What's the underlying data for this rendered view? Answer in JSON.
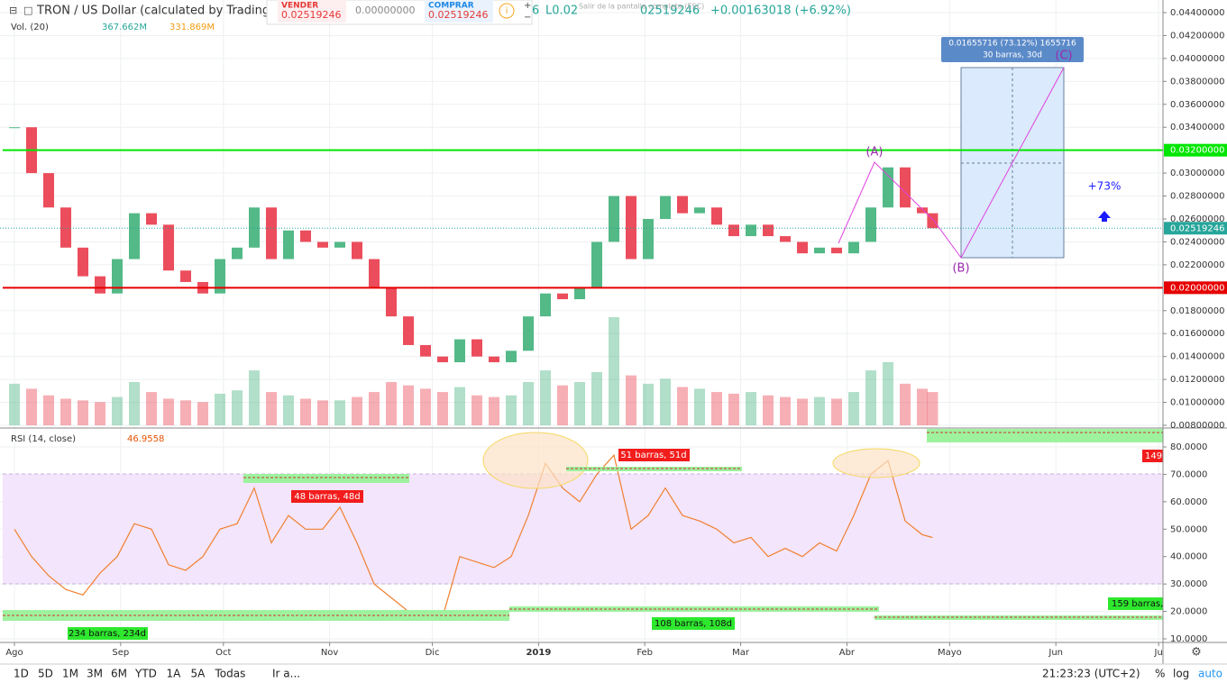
{
  "chart_data": {
    "type": "candlestick",
    "title": "TRON / US Dollar (calculated by TradingVie",
    "change": "+0.00163018 (+6.92%)",
    "partial_legend": [
      "6",
      "L0.02",
      "02519246"
    ],
    "fullscreen_hint": "Salir de la pantalla completa (ESC)",
    "trade": {
      "sell_label": "VENDER",
      "sell_price": "0.02519246",
      "spread": "0.00000000",
      "buy_label": "COMPRAR",
      "buy_price": "0.02519246"
    },
    "volume_label": "Vol. (20)",
    "volume_value": "367.662M",
    "volume_ma": "331.869M",
    "rsi_label": "RSI (14, close)",
    "rsi_value": "46.9558",
    "up_color": "#53b987",
    "down_color": "#eb4d5c",
    "x": [
      0,
      5,
      10,
      15,
      20,
      25,
      30,
      35,
      40,
      45,
      50,
      55,
      60,
      65,
      70,
      75,
      80,
      85,
      90,
      95,
      100,
      105,
      110,
      115,
      120,
      125,
      130,
      135,
      140,
      145,
      150,
      155,
      160,
      165,
      170,
      175,
      180,
      185,
      190,
      195,
      200,
      205,
      210,
      215,
      220,
      225,
      230,
      235,
      240,
      245,
      250,
      255,
      260,
      265,
      268
    ],
    "close": [
      0.034,
      0.03,
      0.027,
      0.0235,
      0.021,
      0.0195,
      0.0225,
      0.0265,
      0.0255,
      0.0215,
      0.0205,
      0.0195,
      0.0225,
      0.0235,
      0.027,
      0.0225,
      0.025,
      0.024,
      0.0235,
      0.024,
      0.0225,
      0.02,
      0.0175,
      0.015,
      0.014,
      0.0135,
      0.0155,
      0.014,
      0.0135,
      0.0145,
      0.0175,
      0.0195,
      0.019,
      0.02,
      0.024,
      0.028,
      0.0225,
      0.026,
      0.028,
      0.0265,
      0.027,
      0.0255,
      0.0245,
      0.0255,
      0.0245,
      0.024,
      0.023,
      0.0235,
      0.023,
      0.024,
      0.027,
      0.0305,
      0.027,
      0.0265,
      0.02519246
    ],
    "volume": [
      250,
      220,
      180,
      160,
      150,
      140,
      170,
      260,
      200,
      160,
      150,
      140,
      190,
      210,
      330,
      200,
      180,
      160,
      150,
      150,
      170,
      200,
      260,
      240,
      220,
      200,
      230,
      180,
      170,
      180,
      260,
      330,
      240,
      260,
      320,
      650,
      300,
      250,
      280,
      230,
      220,
      200,
      190,
      200,
      180,
      170,
      160,
      170,
      160,
      200,
      330,
      380,
      250,
      220,
      200
    ],
    "rsi": [
      50,
      40,
      33,
      28,
      26,
      34,
      40,
      52,
      50,
      37,
      35,
      40,
      50,
      52,
      65,
      45,
      55,
      50,
      50,
      58,
      45,
      30,
      25,
      20,
      17,
      18,
      40,
      38,
      36,
      40,
      55,
      74,
      65,
      60,
      70,
      77,
      50,
      55,
      65,
      55,
      53,
      50,
      45,
      47,
      40,
      43,
      40,
      45,
      42,
      55,
      70,
      75,
      53,
      48,
      46.9558
    ],
    "xticks": [
      {
        "value": 0,
        "label": "Ago"
      },
      {
        "value": 31,
        "label": "Sep"
      },
      {
        "value": 61,
        "label": "Oct"
      },
      {
        "value": 92,
        "label": "Nov"
      },
      {
        "value": 122,
        "label": "Dic"
      },
      {
        "value": 153,
        "label": "2019"
      },
      {
        "value": 184,
        "label": "Feb"
      },
      {
        "value": 212,
        "label": "Mar"
      },
      {
        "value": 243,
        "label": "Abr"
      },
      {
        "value": 273,
        "label": "Mayo"
      },
      {
        "value": 304,
        "label": "Jun"
      },
      {
        "value": 334,
        "label": "Ju"
      }
    ],
    "ylim": [
      0.008,
      0.044
    ],
    "yticks": [
      {
        "value": 0.044,
        "label": "0.04400000"
      },
      {
        "value": 0.042,
        "label": "0.04200000"
      },
      {
        "value": 0.04,
        "label": "0.04000000"
      },
      {
        "value": 0.038,
        "label": "0.03800000"
      },
      {
        "value": 0.036,
        "label": "0.03600000"
      },
      {
        "value": 0.034,
        "label": "0.03400000"
      },
      {
        "value": 0.03,
        "label": "0.03000000"
      },
      {
        "value": 0.028,
        "label": "0.02800000"
      },
      {
        "value": 0.026,
        "label": "0.02600000"
      },
      {
        "value": 0.024,
        "label": "0.02400000"
      },
      {
        "value": 0.022,
        "label": "0.02200000"
      },
      {
        "value": 0.018,
        "label": "0.01800000"
      },
      {
        "value": 0.016,
        "label": "0.01600000"
      },
      {
        "value": 0.014,
        "label": "0.01400000"
      },
      {
        "value": 0.012,
        "label": "0.01200000"
      },
      {
        "value": 0.01,
        "label": "0.01000000"
      },
      {
        "value": 0.008,
        "label": "0.00800000"
      }
    ],
    "hlines": [
      {
        "value": 0.032,
        "label": "0.03200000",
        "color": "#00e600"
      },
      {
        "value": 0.02,
        "label": "0.02000000",
        "color": "#e60000"
      }
    ],
    "last_price": {
      "value": 0.02519246,
      "label": "0.02519246"
    },
    "rsi_ylim": [
      10,
      80
    ],
    "rsi_ticks": [
      {
        "value": 80,
        "label": "80.0000"
      },
      {
        "value": 70,
        "label": "70.0000"
      },
      {
        "value": 60,
        "label": "60.0000"
      },
      {
        "value": 50,
        "label": "50.0000"
      },
      {
        "value": 40,
        "label": "40.0000"
      },
      {
        "value": 30,
        "label": "30.0000"
      },
      {
        "value": 20,
        "label": "20.0000"
      },
      {
        "value": 10,
        "label": "10.0000"
      }
    ],
    "annotations": {
      "a": "(A)",
      "b": "(B)",
      "c": "(C)",
      "pct": "+73%",
      "proj_1": "0.01655716 (73.12%) 1655716",
      "proj_2": "30 barras, 30d",
      "r1": "234 barras, 234d",
      "r2": "48 barras, 48d",
      "r3": "51 barras, 51d",
      "r4": "108 barras, 108d",
      "r5": "159 barras, ",
      "r6": "149"
    },
    "toolbar": [
      "1D",
      "5D",
      "1M",
      "3M",
      "6M",
      "YTD",
      "1A",
      "5A",
      "Todas",
      "Ir a..."
    ],
    "clock": "21:23:23 (UTC+2)",
    "scale_opts": [
      "%",
      "log",
      "auto"
    ]
  }
}
